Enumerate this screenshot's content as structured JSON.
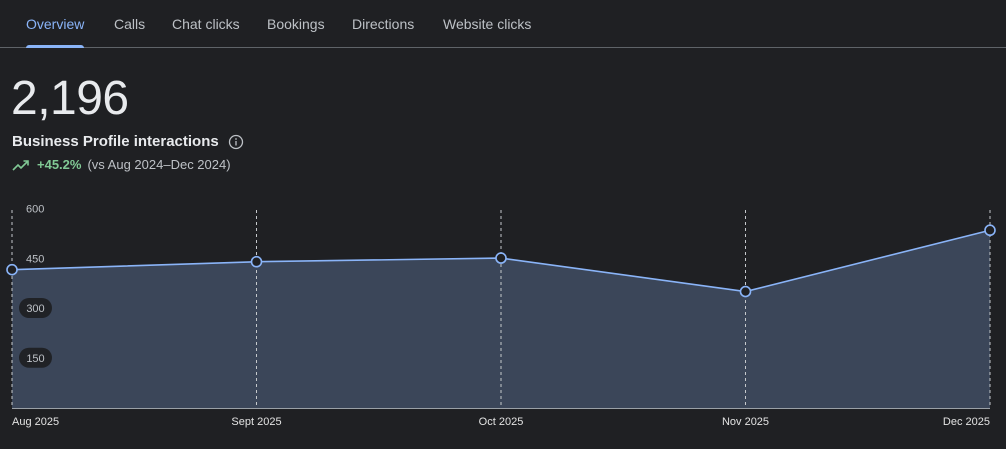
{
  "tabs": [
    {
      "label": "Overview",
      "active": true
    },
    {
      "label": "Calls",
      "active": false
    },
    {
      "label": "Chat clicks",
      "active": false
    },
    {
      "label": "Bookings",
      "active": false
    },
    {
      "label": "Directions",
      "active": false
    },
    {
      "label": "Website clicks",
      "active": false
    }
  ],
  "summary": {
    "total": "2,196",
    "label": "Business Profile interactions",
    "info_icon": "info-icon",
    "trend_icon": "trending-up-icon",
    "trend_value": "+45.2%",
    "trend_compare": "(vs Aug 2024–Dec 2024)"
  },
  "colors": {
    "accent": "#8ab4f8",
    "positive": "#81c995",
    "area_fill": "#3b4659",
    "background": "#1f2023"
  },
  "chart_data": {
    "type": "area",
    "x": [
      "Aug 2025",
      "Sept 2025",
      "Oct 2025",
      "Nov 2025",
      "Dec 2025"
    ],
    "series": [
      {
        "values": [
          417,
          441,
          452,
          351,
          536
        ]
      }
    ],
    "y_ticks": [
      "150",
      "300",
      "450",
      "600"
    ],
    "ylim": [
      0,
      600
    ],
    "grid": "vertical-dashed",
    "markers": true
  }
}
